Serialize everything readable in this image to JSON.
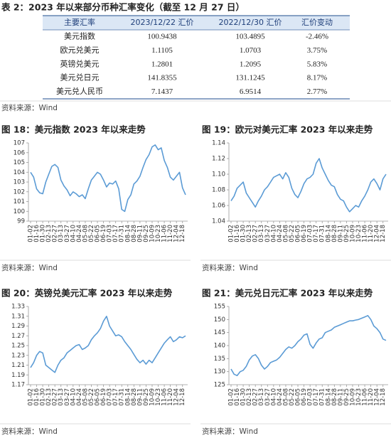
{
  "table": {
    "title": "表 2：2023 年以来部分币种汇率变化（截至 12 月 27 日）",
    "headers": [
      "主要汇率",
      "2023/12/22 汇价",
      "2022/12/30 汇价",
      "汇价变动"
    ],
    "rows": [
      [
        "美元指数",
        "100.9438",
        "103.4895",
        "-2.46%"
      ],
      [
        "欧元兑美元",
        "1.1105",
        "1.0703",
        "3.75%"
      ],
      [
        "英镑兑美元",
        "1.2801",
        "1.2095",
        "5.83%"
      ],
      [
        "美元兑日元",
        "141.8355",
        "131.1245",
        "8.17%"
      ],
      [
        "美元兑人民币",
        "7.1437",
        "6.9514",
        "2.77%"
      ]
    ],
    "source": "资料来源：Wind"
  },
  "chart_data": [
    {
      "type": "line",
      "title": "图 18：美元指数 2023 年以来走势",
      "source": "资料来源：Wind",
      "color": "#5b9bd5",
      "categories": [
        "01-02",
        null,
        "01-16",
        null,
        "01-30",
        null,
        "02-13",
        null,
        "02-27",
        null,
        "03-13",
        null,
        "03-27",
        null,
        "04-10",
        null,
        "04-24",
        null,
        "05-08",
        null,
        "05-22",
        null,
        "06-05",
        null,
        "06-19",
        null,
        "07-03",
        null,
        "07-17",
        null,
        "07-31",
        null,
        "08-14",
        null,
        "08-28",
        null,
        "09-11",
        null,
        "09-25",
        null,
        "10-09",
        null,
        "10-23",
        null,
        "11-06",
        null,
        "11-20",
        null,
        "12-04",
        null,
        "12-18",
        null
      ],
      "values": [
        104.0,
        103.5,
        102.3,
        101.9,
        101.8,
        103.0,
        103.8,
        104.6,
        104.8,
        104.5,
        103.2,
        102.6,
        102.2,
        101.6,
        102.0,
        101.8,
        101.5,
        101.7,
        101.3,
        102.3,
        103.2,
        103.6,
        104.0,
        103.8,
        103.2,
        102.5,
        102.9,
        102.8,
        103.1,
        102.3,
        100.2,
        100.0,
        101.2,
        101.7,
        102.8,
        103.1,
        103.6,
        104.5,
        105.3,
        105.8,
        106.6,
        106.8,
        106.3,
        106.5,
        105.2,
        104.5,
        103.5,
        103.2,
        103.6,
        104.0,
        102.4,
        101.7
      ],
      "ylim": [
        99,
        107
      ],
      "yticks": [
        99,
        100,
        101,
        102,
        103,
        104,
        105,
        106,
        107
      ]
    },
    {
      "type": "line",
      "title": "图 19：欧元对美元汇率 2023 年以来走势",
      "source": "资料来源：Wind",
      "color": "#5b9bd5",
      "categories": [
        "01-02",
        null,
        "01-16",
        null,
        "01-30",
        null,
        "02-13",
        null,
        "02-27",
        null,
        "03-13",
        null,
        "03-27",
        null,
        "04-10",
        null,
        "04-24",
        null,
        "05-08",
        null,
        "05-22",
        null,
        "06-05",
        null,
        "06-19",
        null,
        "07-03",
        null,
        "07-17",
        null,
        "07-31",
        null,
        "08-14",
        null,
        "08-28",
        null,
        "09-11",
        null,
        "09-25",
        null,
        "10-09",
        null,
        "10-23",
        null,
        "11-06",
        null,
        "11-20",
        null,
        "12-04",
        null,
        "12-18",
        null
      ],
      "values": [
        1.066,
        1.072,
        1.082,
        1.086,
        1.09,
        1.076,
        1.07,
        1.064,
        1.058,
        1.066,
        1.072,
        1.08,
        1.084,
        1.09,
        1.096,
        1.098,
        1.1,
        1.094,
        1.102,
        1.096,
        1.082,
        1.074,
        1.07,
        1.078,
        1.088,
        1.094,
        1.096,
        1.1,
        1.114,
        1.12,
        1.108,
        1.1,
        1.092,
        1.086,
        1.084,
        1.074,
        1.068,
        1.066,
        1.058,
        1.052,
        1.056,
        1.06,
        1.058,
        1.066,
        1.072,
        1.08,
        1.09,
        1.094,
        1.088,
        1.08,
        1.094,
        1.1
      ],
      "ylim": [
        1.04,
        1.14
      ],
      "yticks": [
        1.04,
        1.06,
        1.08,
        {
          "value": 1.1,
          "label": "1.10"
        },
        1.12,
        1.14
      ]
    },
    {
      "type": "line",
      "title": "图 20：英镑兑美元汇率 2023 年以来走势",
      "source": "资料来源：Wind",
      "color": "#5b9bd5",
      "categories": [
        "01-02",
        null,
        "01-16",
        null,
        "01-30",
        null,
        "02-13",
        null,
        "02-27",
        null,
        "03-13",
        null,
        "03-27",
        null,
        "04-10",
        null,
        "04-24",
        null,
        "05-08",
        null,
        "05-22",
        null,
        "06-05",
        null,
        "06-19",
        null,
        "07-03",
        null,
        "07-17",
        null,
        "07-31",
        null,
        "08-14",
        null,
        "08-28",
        null,
        "09-11",
        null,
        "09-25",
        null,
        "10-09",
        null,
        "10-23",
        null,
        "11-06",
        null,
        "11-20",
        null,
        "12-04",
        null,
        "12-18",
        null
      ],
      "values": [
        1.205,
        1.215,
        1.23,
        1.238,
        1.235,
        1.21,
        1.205,
        1.2,
        1.195,
        1.21,
        1.22,
        1.225,
        1.235,
        1.24,
        1.245,
        1.25,
        1.252,
        1.242,
        1.245,
        1.25,
        1.262,
        1.27,
        1.276,
        1.285,
        1.3,
        1.31,
        1.29,
        1.28,
        1.27,
        1.272,
        1.268,
        1.258,
        1.25,
        1.242,
        1.232,
        1.222,
        1.215,
        1.22,
        1.212,
        1.22,
        1.215,
        1.225,
        1.235,
        1.245,
        1.255,
        1.262,
        1.268,
        1.258,
        1.262,
        1.268,
        1.266,
        1.27
      ],
      "ylim": [
        1.17,
        1.33
      ],
      "yticks": [
        1.17,
        1.19,
        1.21,
        1.23,
        1.25,
        1.27,
        1.29,
        1.31,
        1.33
      ]
    },
    {
      "type": "line",
      "title": "图 21：美元兑日元汇率 2023 年以来走势",
      "source": "资料来源：Wind",
      "color": "#5b9bd5",
      "categories": [
        "01-02",
        null,
        "01-16",
        null,
        "01-30",
        null,
        "02-13",
        null,
        "02-27",
        null,
        "03-13",
        null,
        "03-27",
        null,
        "04-10",
        null,
        "04-24",
        null,
        "05-08",
        null,
        "05-22",
        null,
        "06-05",
        null,
        "06-19",
        null,
        "07-03",
        null,
        "07-17",
        null,
        "07-31",
        null,
        "08-14",
        null,
        "08-28",
        null,
        "09-11",
        null,
        "09-25",
        null,
        "10-09",
        null,
        "10-23",
        null,
        "11-06",
        null,
        "11-20",
        null,
        "12-04",
        null,
        "12-18",
        null
      ],
      "values": [
        131.0,
        129.0,
        128.5,
        130.0,
        130.5,
        132.0,
        134.5,
        136.0,
        136.5,
        135.0,
        132.5,
        131.0,
        132.0,
        133.5,
        134.0,
        134.5,
        135.5,
        137.0,
        138.5,
        139.5,
        139.0,
        140.0,
        141.5,
        142.5,
        144.0,
        144.5,
        140.5,
        139.0,
        141.0,
        142.5,
        143.0,
        145.0,
        145.5,
        146.0,
        147.0,
        147.5,
        148.0,
        148.5,
        149.0,
        149.5,
        149.5,
        149.8,
        150.0,
        150.5,
        151.0,
        151.5,
        150.0,
        147.5,
        146.5,
        145.0,
        142.5,
        142.0
      ],
      "ylim": [
        125,
        155
      ],
      "yticks": [
        125,
        130,
        135,
        140,
        145,
        150,
        155
      ]
    }
  ]
}
